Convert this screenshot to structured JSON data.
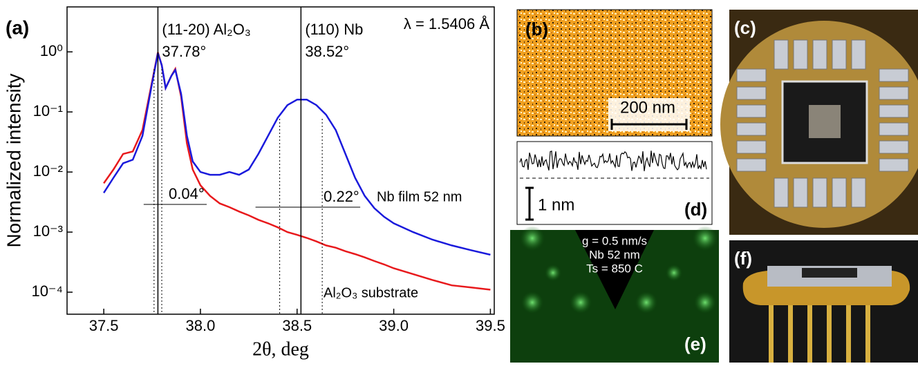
{
  "chart_data": {
    "type": "line",
    "panel_label": "(a)",
    "x_label": "2θ, deg",
    "y_label": "Normalized intensity",
    "log_y": true,
    "wavelength_note": "λ = 1.5406 Å",
    "x": [
      37.5,
      37.55,
      37.6,
      37.65,
      37.7,
      37.75,
      37.78,
      37.8,
      37.82,
      37.85,
      37.87,
      37.9,
      37.93,
      37.96,
      38.0,
      38.05,
      38.1,
      38.15,
      38.2,
      38.25,
      38.3,
      38.35,
      38.4,
      38.45,
      38.5,
      38.55,
      38.6,
      38.65,
      38.7,
      38.75,
      38.8,
      38.85,
      38.9,
      38.95,
      39.0,
      39.1,
      39.2,
      39.3,
      39.4,
      39.5
    ],
    "series": [
      {
        "name": "Al₂O₃ substrate",
        "color": "#e8191c",
        "values": [
          0.0065,
          0.011,
          0.02,
          0.022,
          0.05,
          0.32,
          0.98,
          0.6,
          0.25,
          0.4,
          0.52,
          0.18,
          0.03,
          0.011,
          0.006,
          0.004,
          0.003,
          0.0026,
          0.0022,
          0.0019,
          0.0016,
          0.0014,
          0.0012,
          0.001,
          0.0009,
          0.0008,
          0.0007,
          0.0006,
          0.00055,
          0.00048,
          0.00043,
          0.00038,
          0.00033,
          0.00029,
          0.00025,
          0.0002,
          0.00016,
          0.00013,
          0.00012,
          0.00011
        ]
      },
      {
        "name": "Nb film 52 nm",
        "color": "#1a1adc",
        "values": [
          0.0045,
          0.008,
          0.014,
          0.016,
          0.04,
          0.3,
          0.95,
          0.6,
          0.25,
          0.4,
          0.5,
          0.2,
          0.04,
          0.015,
          0.01,
          0.009,
          0.009,
          0.01,
          0.009,
          0.011,
          0.02,
          0.04,
          0.08,
          0.13,
          0.16,
          0.16,
          0.13,
          0.09,
          0.05,
          0.02,
          0.008,
          0.004,
          0.0025,
          0.0018,
          0.0014,
          0.001,
          0.00075,
          0.0006,
          0.0005,
          0.00042
        ]
      }
    ],
    "peaks": [
      {
        "label": "(11-20) Al₂O₃",
        "x": 37.78,
        "x_label": "37.78°",
        "width": 0.04,
        "width_label": "0.04°"
      },
      {
        "label": "(110) Nb",
        "x": 38.52,
        "x_label": "38.52°",
        "width": 0.22,
        "width_label": "0.22°"
      }
    ],
    "xlim": [
      37.31,
      39.52
    ],
    "ylim": [
      4.3e-05,
      5.6
    ],
    "xticks": [
      37.5,
      {
        "value": 38,
        "label": "38.0"
      },
      38.5,
      {
        "value": 39,
        "label": "39.0"
      },
      39.5
    ],
    "yticks": [
      {
        "value": 0.0001,
        "label": "10⁻⁴"
      },
      {
        "value": 0.001,
        "label": "10⁻³"
      },
      {
        "value": 0.01,
        "label": "10⁻²"
      },
      {
        "value": 0.1,
        "label": "10⁻¹"
      },
      {
        "value": 1,
        "label": "10⁰"
      }
    ]
  },
  "panels": {
    "b": {
      "label": "(b)",
      "scale": "200 nm"
    },
    "d": {
      "label": "(d)",
      "scale": "1 nm"
    },
    "e": {
      "label": "(e)",
      "lines": [
        "g = 0.5 nm/s",
        "Nb 52 nm",
        "Ts = 850 C"
      ]
    },
    "c": {
      "label": "(c)"
    },
    "f": {
      "label": "(f)"
    }
  }
}
